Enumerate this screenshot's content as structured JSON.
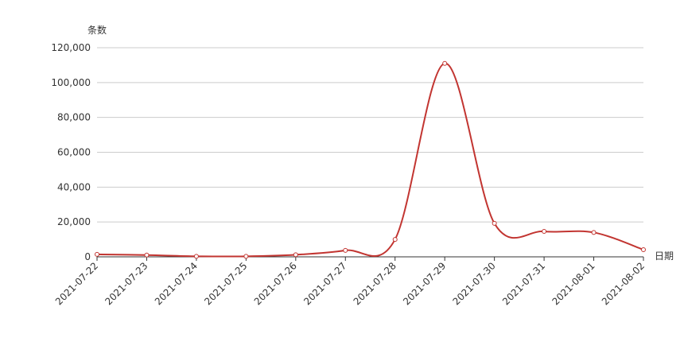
{
  "chart_data": {
    "type": "line",
    "y_axis_label": "条数",
    "x_axis_label": "日期",
    "categories": [
      "2021-07-22",
      "2021-07-23",
      "2021-07-24",
      "2021-07-25",
      "2021-07-26",
      "2021-07-27",
      "2021-07-28",
      "2021-07-29",
      "2021-07-30",
      "2021-07-31",
      "2021-08-01",
      "2021-08-02"
    ],
    "values": [
      1400,
      1000,
      300,
      300,
      1200,
      3700,
      10000,
      111000,
      19200,
      14600,
      14000,
      4100
    ],
    "color": "#c23531",
    "ylim": [
      0,
      120000
    ],
    "yticks": [
      0,
      {
        "value": 20000,
        "label": "20,000"
      },
      {
        "value": 40000,
        "label": "40,000"
      },
      {
        "value": 60000,
        "label": "60,000"
      },
      {
        "value": 80000,
        "label": "80,000"
      },
      {
        "value": 100000,
        "label": "100,000"
      },
      {
        "value": 120000,
        "label": "120,000"
      }
    ],
    "grid": true,
    "smooth": true
  }
}
